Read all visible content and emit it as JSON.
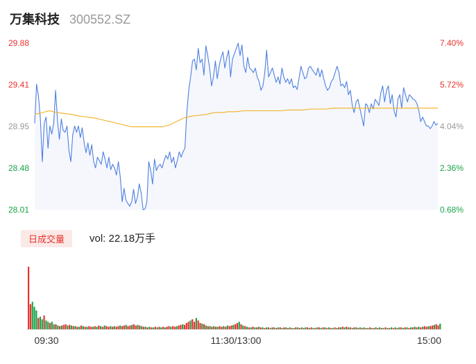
{
  "header": {
    "name": "万集科技",
    "code": "300552.SZ"
  },
  "volume": {
    "badge_label": "日成交量",
    "text": "vol: 22.18万手"
  },
  "colors": {
    "up": "#e8322d",
    "down": "#1aa34a",
    "neutral": "#999999",
    "price_line": "#4d7fe0",
    "avg_line": "#f2b01e",
    "fill": "#f5f7fd"
  },
  "chart_data": [
    {
      "type": "line",
      "title": "",
      "y_ticks_left": [
        "29.88",
        "29.41",
        "28.95",
        "28.48",
        "28.01"
      ],
      "y_ticks_right": [
        "7.40%",
        "5.72%",
        "4.04%",
        "2.36%",
        "0.68%"
      ],
      "ylim": [
        28.01,
        29.88
      ],
      "x_ticks": [
        "09:30",
        "11:30/13:00",
        "15:00"
      ],
      "series": [
        {
          "values": [
            28.98,
            29.42,
            29.28,
            29.03,
            28.55,
            28.98,
            29.05,
            28.7,
            28.95,
            28.86,
            28.98,
            29.35,
            29.01,
            28.8,
            29.03,
            28.9,
            28.88,
            28.95,
            28.68,
            28.55,
            28.85,
            28.95,
            28.88,
            28.95,
            28.82,
            28.93,
            28.76,
            28.65,
            28.76,
            28.62,
            28.74,
            28.55,
            28.48,
            28.6,
            28.56,
            28.52,
            28.66,
            28.58,
            28.48,
            28.6,
            28.46,
            28.52,
            28.48,
            28.4,
            28.55,
            28.38,
            28.1,
            28.25,
            28.12,
            28.08,
            28.05,
            28.1,
            28.24,
            28.08,
            28.15,
            28.3,
            28.2,
            28.01,
            28.02,
            28.1,
            28.55,
            28.45,
            28.3,
            28.58,
            28.45,
            28.5,
            28.52,
            28.48,
            28.56,
            28.62,
            28.58,
            28.66,
            28.54,
            28.6,
            28.48,
            28.56,
            28.66,
            28.6,
            28.66,
            28.7,
            29.1,
            29.35,
            29.5,
            29.68,
            29.7,
            29.58,
            29.82,
            29.66,
            29.7,
            29.52,
            29.85,
            29.74,
            29.6,
            29.4,
            29.5,
            29.68,
            29.48,
            29.62,
            29.72,
            29.78,
            29.6,
            29.72,
            29.8,
            29.5,
            29.7,
            29.76,
            29.82,
            29.88,
            29.74,
            29.86,
            29.62,
            29.55,
            29.72,
            29.6,
            29.58,
            29.55,
            29.6,
            29.5,
            29.45,
            29.35,
            29.4,
            29.55,
            29.8,
            29.5,
            29.55,
            29.6,
            29.52,
            29.44,
            29.5,
            29.42,
            29.6,
            29.5,
            29.44,
            29.48,
            29.42,
            29.48,
            29.38,
            29.4,
            29.36,
            29.48,
            29.62,
            29.55,
            29.48,
            29.5,
            29.6,
            29.62,
            29.58,
            29.55,
            29.52,
            29.6,
            29.5,
            29.58,
            29.48,
            29.4,
            29.35,
            29.38,
            29.45,
            29.48,
            29.55,
            29.62,
            29.55,
            29.4,
            29.42,
            29.38,
            29.45,
            29.3,
            29.35,
            29.18,
            29.1,
            29.22,
            29.25,
            29.15,
            29.05,
            28.95,
            29.2,
            29.18,
            29.1,
            29.2,
            29.14,
            29.25,
            29.22,
            29.18,
            29.32,
            29.4,
            29.22,
            29.35,
            29.4,
            29.2,
            29.3,
            29.12,
            29.05,
            29.25,
            29.3,
            29.15,
            29.38,
            29.3,
            29.22,
            29.3,
            29.28,
            29.25,
            29.24,
            29.2,
            29.12,
            29.0,
            29.05,
            29.0,
            28.95,
            28.95,
            28.92,
            28.95,
            29.0,
            28.96,
            28.98
          ],
          "color": "#4d7fe0"
        },
        {
          "values": [
            29.08,
            29.1,
            29.12,
            29.1,
            29.09,
            29.08,
            29.06,
            29.05,
            29.04,
            29.02,
            29.0,
            28.98,
            28.96,
            28.94,
            28.94,
            28.94,
            28.94,
            28.94,
            28.96,
            29.0,
            29.04,
            29.06,
            29.07,
            29.08,
            29.1,
            29.1,
            29.11,
            29.11,
            29.12,
            29.12,
            29.12,
            29.12,
            29.12,
            29.12,
            29.13,
            29.13,
            29.13,
            29.14,
            29.14,
            29.14,
            29.15,
            29.15,
            29.15,
            29.15,
            29.15,
            29.15,
            29.15,
            29.15,
            29.15,
            29.15,
            29.15,
            29.15,
            29.15,
            29.15,
            29.15
          ],
          "color": "#f2b01e"
        }
      ]
    },
    {
      "type": "bar",
      "title": "",
      "ylim": [
        0,
        1
      ],
      "values": [
        1.0,
        0.4,
        0.44,
        0.36,
        0.3,
        0.18,
        0.2,
        0.16,
        0.22,
        0.14,
        0.12,
        0.1,
        0.12,
        0.08,
        0.08,
        0.06,
        0.05,
        0.06,
        0.07,
        0.08,
        0.06,
        0.07,
        0.06,
        0.05,
        0.05,
        0.04,
        0.04,
        0.06,
        0.05,
        0.04,
        0.04,
        0.05,
        0.04,
        0.04,
        0.05,
        0.04,
        0.06,
        0.05,
        0.04,
        0.06,
        0.05,
        0.04,
        0.05,
        0.04,
        0.05,
        0.04,
        0.05,
        0.06,
        0.05,
        0.06,
        0.07,
        0.05,
        0.06,
        0.07,
        0.08,
        0.06,
        0.07,
        0.06,
        0.05,
        0.04,
        0.04,
        0.03,
        0.04,
        0.03,
        0.03,
        0.04,
        0.03,
        0.04,
        0.03,
        0.04,
        0.03,
        0.04,
        0.05,
        0.04,
        0.05,
        0.04,
        0.05,
        0.06,
        0.07,
        0.08,
        0.07,
        0.1,
        0.12,
        0.14,
        0.16,
        0.12,
        0.18,
        0.14,
        0.1,
        0.09,
        0.08,
        0.06,
        0.05,
        0.05,
        0.04,
        0.05,
        0.04,
        0.04,
        0.05,
        0.04,
        0.05,
        0.04,
        0.06,
        0.05,
        0.06,
        0.07,
        0.08,
        0.1,
        0.12,
        0.08,
        0.06,
        0.05,
        0.04,
        0.03,
        0.03,
        0.04,
        0.03,
        0.03,
        0.04,
        0.03,
        0.03,
        0.02,
        0.03,
        0.03,
        0.02,
        0.03,
        0.03,
        0.02,
        0.03,
        0.03,
        0.02,
        0.03,
        0.03,
        0.02,
        0.03,
        0.02,
        0.02,
        0.03,
        0.03,
        0.02,
        0.03,
        0.02,
        0.03,
        0.03,
        0.02,
        0.03,
        0.02,
        0.02,
        0.03,
        0.03,
        0.02,
        0.03,
        0.03,
        0.02,
        0.03,
        0.02,
        0.02,
        0.03,
        0.02,
        0.03,
        0.03,
        0.04,
        0.03,
        0.04,
        0.03,
        0.03,
        0.02,
        0.03,
        0.03,
        0.02,
        0.03,
        0.02,
        0.03,
        0.02,
        0.02,
        0.03,
        0.02,
        0.02,
        0.03,
        0.02,
        0.03,
        0.02,
        0.02,
        0.03,
        0.02,
        0.02,
        0.03,
        0.02,
        0.03,
        0.02,
        0.03,
        0.03,
        0.02,
        0.03,
        0.03,
        0.02,
        0.03,
        0.03,
        0.04,
        0.03,
        0.04,
        0.03,
        0.04,
        0.05,
        0.04,
        0.05,
        0.05,
        0.06,
        0.07,
        0.08,
        0.06,
        0.09
      ],
      "colors": [
        "u",
        "u",
        "d",
        "d",
        "d",
        "u",
        "d",
        "d",
        "u",
        "d",
        "d",
        "u",
        "d",
        "d",
        "u",
        "d",
        "u",
        "d",
        "u",
        "u",
        "d",
        "u",
        "d",
        "u",
        "d",
        "u",
        "d",
        "u",
        "d",
        "u",
        "d",
        "u",
        "u",
        "d",
        "u",
        "d",
        "u",
        "d",
        "u",
        "d",
        "u",
        "u",
        "d",
        "u",
        "d",
        "u",
        "u",
        "d",
        "u",
        "u",
        "d",
        "u",
        "u",
        "d",
        "u",
        "u",
        "d",
        "u",
        "d",
        "u",
        "d",
        "u",
        "d",
        "u",
        "d",
        "u",
        "d",
        "u",
        "d",
        "u",
        "d",
        "u",
        "u",
        "d",
        "u",
        "u",
        "d",
        "u",
        "u",
        "d",
        "u",
        "u",
        "u",
        "d",
        "u",
        "u",
        "d",
        "u",
        "u",
        "d",
        "u",
        "d",
        "u",
        "d",
        "u",
        "d",
        "u",
        "d",
        "u",
        "u",
        "d",
        "u",
        "d",
        "u",
        "u",
        "d",
        "u",
        "u",
        "d",
        "u",
        "d",
        "u",
        "d",
        "u",
        "d",
        "u",
        "d",
        "u",
        "d",
        "u",
        "d",
        "u",
        "d",
        "u",
        "d",
        "u",
        "d",
        "u",
        "d",
        "u",
        "d",
        "u",
        "d",
        "u",
        "d",
        "u",
        "d",
        "u",
        "d",
        "u",
        "d",
        "u",
        "d",
        "u",
        "d",
        "u",
        "d",
        "u",
        "d",
        "u",
        "d",
        "u",
        "d",
        "u",
        "d",
        "u",
        "d",
        "u",
        "d",
        "u",
        "d",
        "u",
        "d",
        "u",
        "d",
        "u",
        "d",
        "u",
        "d",
        "u",
        "d",
        "u",
        "d",
        "u",
        "d",
        "u",
        "d",
        "u",
        "d",
        "u",
        "d",
        "u",
        "d",
        "u",
        "d",
        "u",
        "d",
        "u",
        "d",
        "u",
        "d",
        "u",
        "d",
        "u",
        "d",
        "u",
        "d",
        "u",
        "d",
        "u",
        "d",
        "u",
        "d",
        "u",
        "u",
        "d",
        "u",
        "u",
        "d",
        "u",
        "u",
        "d",
        "u",
        "u"
      ]
    }
  ]
}
